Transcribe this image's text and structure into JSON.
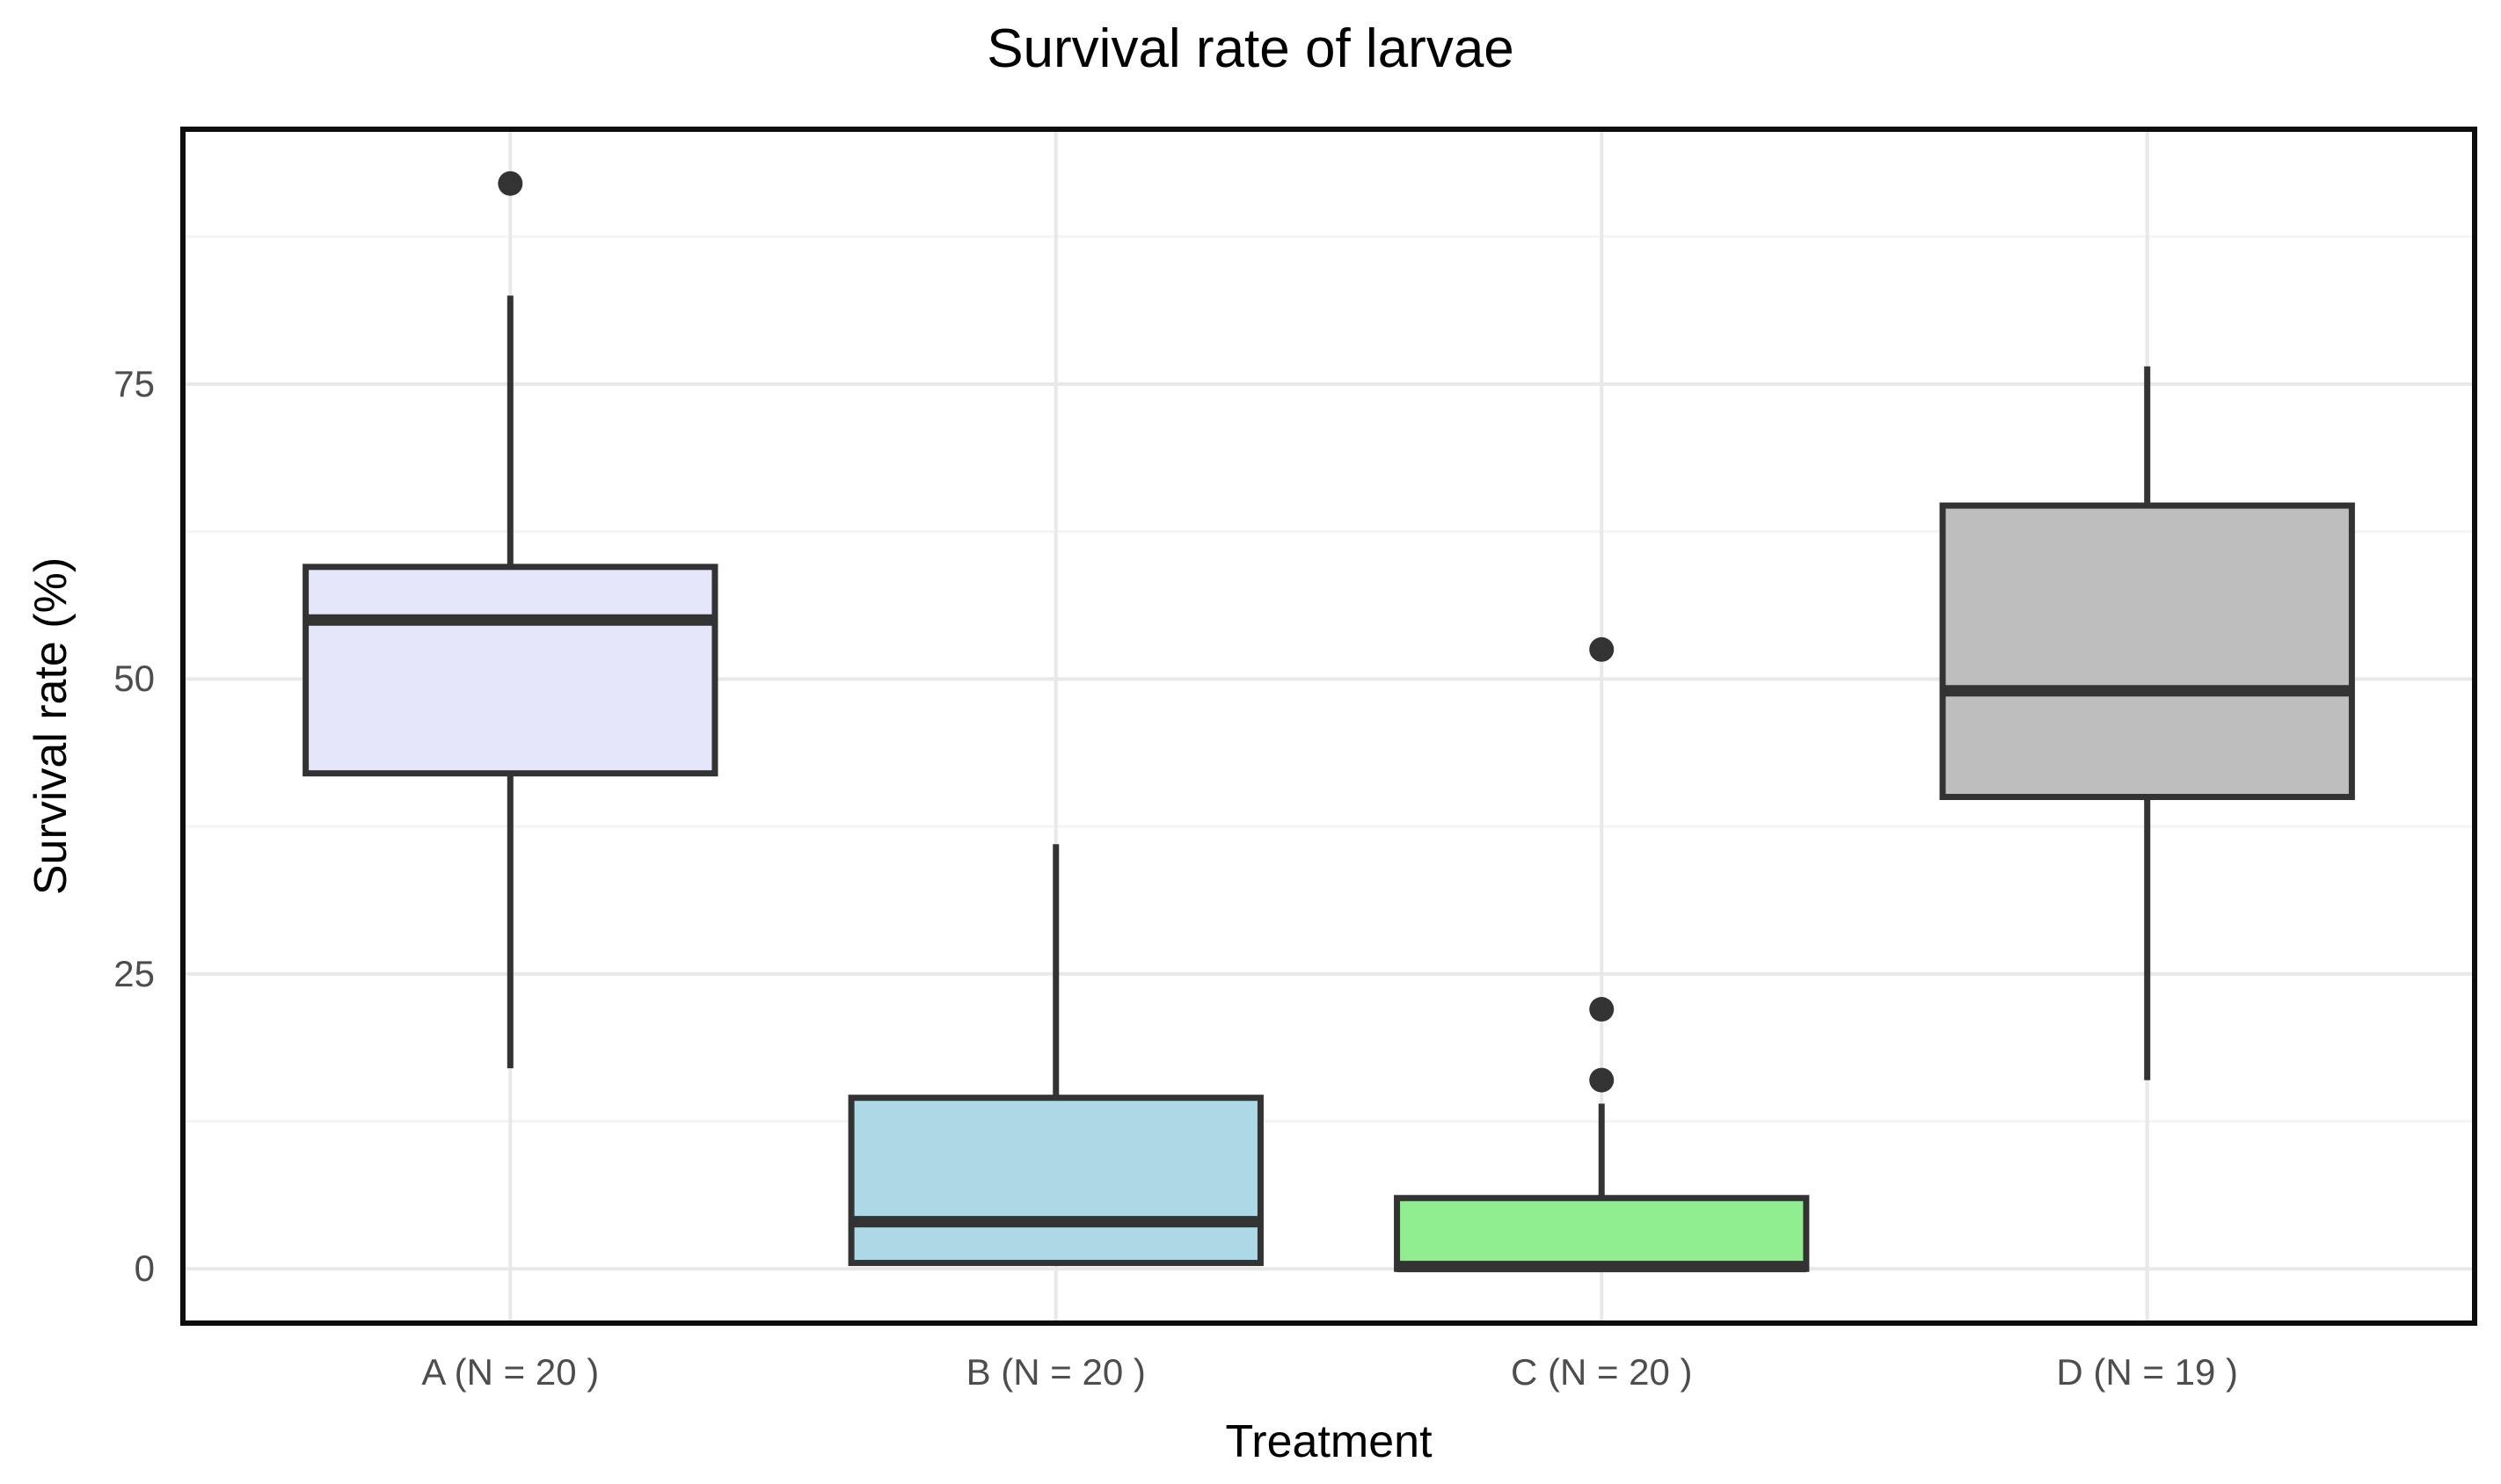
{
  "chart_data": {
    "type": "boxplot",
    "title": "Survival rate of larvae",
    "xlabel": "Treatment",
    "ylabel": "Survival rate (%)",
    "ylim": [
      -4.6,
      96.6
    ],
    "yticks": [
      0,
      25,
      50,
      75
    ],
    "yminor": [
      12.5,
      37.5,
      62.5,
      87.5
    ],
    "grid": "on",
    "legend": "none",
    "categories": [
      "A (N = 20 )",
      "B (N = 20 )",
      "C (N = 20 )",
      "D (N = 19 )"
    ],
    "series": [
      {
        "name": "A",
        "label": "A (N = 20 )",
        "fill": "#E6E6FA",
        "min": 17,
        "q1": 42,
        "median": 55,
        "q3": 59.5,
        "max": 82.5,
        "outliers": [
          92
        ]
      },
      {
        "name": "B",
        "label": "B (N = 20 )",
        "fill": "#ADD8E6",
        "min": 0.5,
        "q1": 0.5,
        "median": 4,
        "q3": 14.5,
        "max": 36,
        "outliers": []
      },
      {
        "name": "C",
        "label": "C (N = 20 )",
        "fill": "#90EE90",
        "min": 0,
        "q1": 0,
        "median": 0.2,
        "q3": 6,
        "max": 14,
        "outliers": [
          16,
          22,
          52.5
        ]
      },
      {
        "name": "D",
        "label": "D (N = 19 )",
        "fill": "#BEBEBE",
        "min": 16,
        "q1": 40,
        "median": 49,
        "q3": 64.7,
        "max": 76.5,
        "outliers": []
      }
    ],
    "colors": {
      "box_stroke": "#333333",
      "median_stroke": "#333333",
      "whisker_stroke": "#333333",
      "outlier_fill": "#333333",
      "panel_border": "#0d0d0d",
      "grid_major": "#e8e8e8",
      "grid_minor": "#f4f4f4",
      "tick_text": "#4d4d4d",
      "panel_background": "#ffffff"
    }
  }
}
